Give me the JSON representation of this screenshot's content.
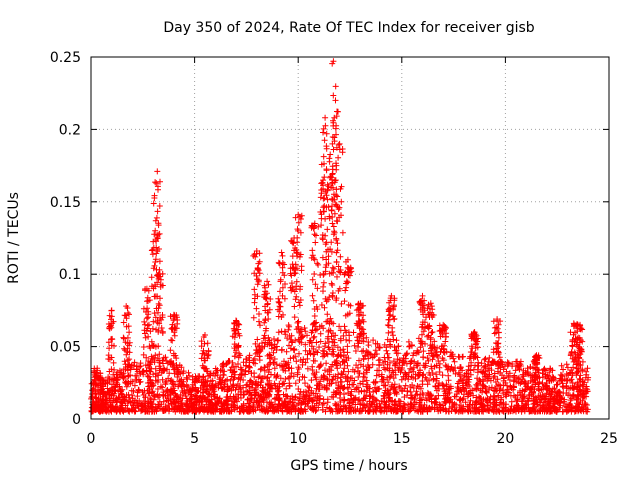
{
  "chart_data": {
    "type": "scatter",
    "title": "Day 350 of 2024, Rate Of TEC Index for receiver gisb",
    "xlabel": "GPS time / hours",
    "ylabel": "ROTI / TECUs",
    "xlim": [
      0,
      25
    ],
    "ylim": [
      0,
      0.25
    ],
    "xticks": [
      0,
      5,
      10,
      15,
      20,
      25
    ],
    "yticks": [
      0,
      0.05,
      0.1,
      0.15,
      0.2,
      0.25
    ],
    "ytick_labels": [
      "0",
      "0.05",
      "0.1",
      "0.15",
      "0.2",
      "0.25"
    ],
    "grid": true,
    "marker": "+",
    "color": "#ff0000",
    "x_data_range": [
      0,
      24
    ],
    "series": [
      {
        "envelope_hours": [
          0,
          0.5,
          1,
          1.5,
          2,
          2.5,
          3,
          3.5,
          4,
          4.5,
          5,
          5.5,
          6,
          6.5,
          7,
          7.5,
          8,
          8.5,
          9,
          9.5,
          10,
          10.5,
          11,
          11.5,
          12,
          12.5,
          13,
          13.5,
          14,
          14.5,
          15,
          15.5,
          16,
          16.5,
          17,
          17.5,
          18,
          18.5,
          19,
          19.5,
          20,
          20.5,
          21,
          21.5,
          22,
          22.5,
          23,
          23.5,
          24
        ],
        "typical_upper": [
          0.02,
          0.022,
          0.025,
          0.03,
          0.035,
          0.035,
          0.04,
          0.04,
          0.035,
          0.03,
          0.025,
          0.025,
          0.03,
          0.035,
          0.04,
          0.04,
          0.045,
          0.05,
          0.055,
          0.06,
          0.06,
          0.06,
          0.065,
          0.065,
          0.06,
          0.055,
          0.055,
          0.05,
          0.05,
          0.05,
          0.05,
          0.05,
          0.05,
          0.045,
          0.045,
          0.04,
          0.04,
          0.04,
          0.04,
          0.035,
          0.035,
          0.035,
          0.035,
          0.03,
          0.03,
          0.03,
          0.035,
          0.04,
          0.03
        ],
        "peaks": [
          {
            "x": 0.3,
            "y": 0.035
          },
          {
            "x": 1.0,
            "y": 0.075
          },
          {
            "x": 1.7,
            "y": 0.078
          },
          {
            "x": 2.7,
            "y": 0.09
          },
          {
            "x": 3.1,
            "y": 0.13
          },
          {
            "x": 3.2,
            "y": 0.171
          },
          {
            "x": 3.3,
            "y": 0.103
          },
          {
            "x": 4.0,
            "y": 0.072
          },
          {
            "x": 5.5,
            "y": 0.058
          },
          {
            "x": 7.0,
            "y": 0.068
          },
          {
            "x": 8.0,
            "y": 0.116
          },
          {
            "x": 8.5,
            "y": 0.095
          },
          {
            "x": 9.2,
            "y": 0.115
          },
          {
            "x": 9.8,
            "y": 0.125
          },
          {
            "x": 10.0,
            "y": 0.141
          },
          {
            "x": 10.8,
            "y": 0.135
          },
          {
            "x": 11.2,
            "y": 0.165
          },
          {
            "x": 11.3,
            "y": 0.208
          },
          {
            "x": 11.5,
            "y": 0.18
          },
          {
            "x": 11.7,
            "y": 0.247
          },
          {
            "x": 11.8,
            "y": 0.22
          },
          {
            "x": 12.0,
            "y": 0.19
          },
          {
            "x": 12.4,
            "y": 0.11
          },
          {
            "x": 13.0,
            "y": 0.08
          },
          {
            "x": 14.5,
            "y": 0.085
          },
          {
            "x": 16.0,
            "y": 0.085
          },
          {
            "x": 16.4,
            "y": 0.08
          },
          {
            "x": 17.0,
            "y": 0.065
          },
          {
            "x": 18.5,
            "y": 0.06
          },
          {
            "x": 19.6,
            "y": 0.069
          },
          {
            "x": 21.5,
            "y": 0.044
          },
          {
            "x": 23.3,
            "y": 0.066
          },
          {
            "x": 23.6,
            "y": 0.065
          }
        ]
      }
    ]
  }
}
